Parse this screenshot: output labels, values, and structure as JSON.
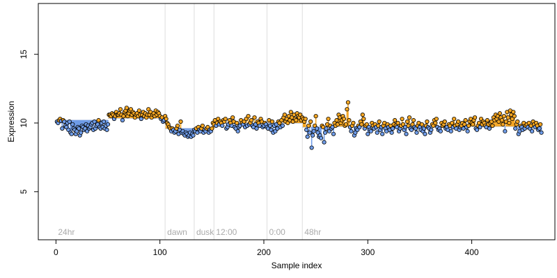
{
  "chart_data": {
    "type": "scatter",
    "xlabel": "Sample index",
    "ylabel": "Expression",
    "xlim": [
      -17,
      480
    ],
    "ylim": [
      1.5,
      18.7
    ],
    "x_ticks": [
      0,
      100,
      200,
      300,
      400
    ],
    "y_ticks": [
      5,
      10,
      15
    ],
    "baseline": 9.75,
    "grid": false,
    "legend": "none",
    "colors": {
      "above": "#f5a623",
      "below": "#6f9ce8",
      "point_edge": "#000000",
      "region_line": "#dddddd",
      "region_label": "#aaaaaa"
    },
    "regions": [
      {
        "x": 0,
        "label": "24hr"
      },
      {
        "x": 105,
        "label": "dawn"
      },
      {
        "x": 133,
        "label": "dusk"
      },
      {
        "x": 152,
        "label": "12:00"
      },
      {
        "x": 203,
        "label": "0:00"
      },
      {
        "x": 237,
        "label": "48hr"
      }
    ],
    "segments": [
      {
        "x0": 0,
        "x1": 50,
        "y": 10.2
      },
      {
        "x0": 50,
        "x1": 105,
        "y": 10.35
      },
      {
        "x0": 105,
        "x1": 152,
        "y": 9.6
      },
      {
        "x0": 152,
        "x1": 237,
        "y": 10.0
      },
      {
        "x0": 237,
        "x1": 263,
        "y": 9.7
      },
      {
        "x0": 263,
        "x1": 462,
        "y": 9.75
      }
    ],
    "points_y": [
      10.1,
      10.0,
      10.2,
      10.3,
      10.15,
      9.6,
      10.2,
      10.1,
      9.8,
      9.7,
      10.0,
      9.5,
      10.1,
      9.3,
      9.2,
      9.9,
      9.6,
      9.5,
      9.2,
      9.4,
      9.7,
      9.6,
      9.1,
      9.3,
      9.8,
      9.7,
      9.5,
      9.6,
      9.9,
      9.4,
      9.8,
      9.6,
      9.7,
      9.9,
      10.0,
      9.5,
      10.1,
      9.6,
      9.8,
      9.9,
      10.2,
      9.7,
      9.6,
      10.0,
      9.7,
      10.1,
      9.6,
      9.8,
      9.5,
      9.9,
      10.6,
      10.6,
      10.5,
      10.7,
      10.6,
      10.3,
      10.5,
      10.8,
      10.6,
      10.6,
      10.7,
      11.0,
      10.6,
      10.2,
      10.5,
      10.8,
      10.9,
      11.1,
      10.5,
      10.7,
      10.9,
      11.0,
      10.6,
      10.8,
      10.7,
      10.4,
      10.6,
      10.7,
      10.5,
      10.9,
      10.6,
      10.3,
      10.6,
      10.8,
      10.5,
      10.7,
      10.4,
      10.6,
      11.0,
      10.6,
      10.8,
      10.4,
      10.6,
      10.7,
      10.5,
      10.9,
      10.6,
      10.8,
      10.7,
      10.5,
      10.3,
      10.4,
      10.1,
      10.2,
      10.5,
      10.3,
      10.0,
      9.9,
      9.7,
      9.6,
      9.4,
      9.6,
      9.5,
      9.3,
      9.4,
      9.6,
      9.8,
      9.2,
      9.5,
      10.1,
      9.3,
      9.4,
      9.2,
      9.1,
      9.3,
      9.2,
      9.0,
      9.1,
      9.3,
      9.0,
      9.2,
      9.1,
      9.5,
      9.4,
      9.6,
      9.3,
      9.7,
      9.5,
      9.4,
      9.6,
      9.8,
      9.3,
      9.5,
      9.4,
      9.6,
      9.7,
      9.3,
      9.5,
      9.4,
      9.6,
      10.0,
      9.9,
      10.2,
      9.8,
      10.0,
      10.3,
      9.9,
      10.1,
      10.0,
      9.8,
      10.2,
      10.1,
      10.3,
      9.6,
      9.7,
      9.9,
      10.2,
      10.0,
      9.8,
      10.4,
      10.1,
      9.7,
      9.6,
      10.0,
      9.4,
      9.7,
      9.8,
      10.2,
      10.0,
      9.9,
      10.1,
      9.7,
      10.3,
      9.8,
      10.5,
      9.9,
      10.0,
      10.2,
      9.8,
      9.7,
      10.4,
      9.9,
      9.6,
      10.1,
      10.0,
      9.8,
      10.3,
      10.1,
      9.7,
      9.8,
      10.0,
      9.9,
      9.7,
      9.6,
      10.2,
      9.8,
      9.5,
      10.1,
      9.3,
      9.8,
      9.4,
      9.9,
      9.6,
      10.1,
      10.0,
      9.7,
      10.2,
      9.8,
      10.4,
      10.6,
      10.1,
      10.3,
      10.0,
      10.5,
      10.2,
      10.8,
      10.4,
      10.1,
      10.6,
      10.3,
      10.2,
      10.7,
      10.5,
      10.4,
      10.6,
      10.2,
      10.4,
      10.3,
      10.1,
      10.3,
      9.5,
      9.0,
      9.8,
      9.3,
      10.1,
      8.2,
      9.1,
      9.4,
      9.8,
      10.5,
      9.6,
      9.3,
      9.0,
      9.1,
      8.9,
      9.8,
      9.7,
      8.6,
      9.3,
      9.6,
      9.9,
      10.3,
      9.4,
      9.8,
      9.6,
      9.7,
      9.2,
      10.0,
      9.8,
      10.2,
      9.9,
      10.6,
      10.4,
      10.0,
      10.2,
      10.5,
      10.3,
      9.8,
      9.9,
      11.0,
      11.5,
      10.2,
      9.7,
      9.4,
      9.8,
      10.0,
      9.1,
      9.3,
      9.6,
      9.5,
      9.8,
      9.7,
      10.1,
      9.9,
      10.6,
      10.3,
      9.6,
      9.8,
      9.9,
      9.2,
      9.7,
      9.5,
      9.4,
      10.0,
      9.8,
      9.6,
      9.9,
      9.7,
      9.3,
      9.8,
      10.1,
      9.5,
      9.7,
      9.2,
      9.8,
      10.0,
      9.6,
      9.4,
      9.9,
      9.7,
      9.5,
      9.8,
      9.3,
      9.6,
      9.9,
      10.2,
      9.8,
      9.7,
      10.0,
      9.4,
      9.6,
      9.8,
      10.3,
      9.9,
      9.5,
      9.7,
      9.2,
      10.1,
      9.8,
      10.4,
      9.6,
      9.5,
      9.9,
      10.2,
      9.7,
      9.6,
      9.3,
      9.8,
      10.0,
      9.7,
      9.5,
      9.9,
      9.4,
      9.6,
      9.2,
      9.8,
      10.1,
      9.7,
      9.6,
      9.3,
      9.5,
      9.9,
      9.8,
      10.2,
      10.0,
      10.3,
      9.7,
      9.5,
      9.6,
      9.4,
      10.0,
      9.8,
      9.9,
      10.1,
      9.6,
      9.7,
      9.5,
      9.9,
      9.8,
      9.4,
      10.0,
      9.7,
      10.3,
      9.8,
      9.6,
      9.9,
      10.1,
      9.5,
      9.7,
      9.8,
      10.0,
      9.6,
      9.9,
      10.2,
      9.7,
      9.4,
      9.8,
      10.1,
      10.3,
      10.0,
      9.9,
      10.2,
      10.4,
      9.6,
      9.5,
      9.8,
      10.0,
      9.7,
      10.3,
      9.9,
      10.1,
      10.0,
      9.8,
      9.7,
      10.2,
      9.9,
      9.6,
      10.0,
      10.1,
      9.8,
      10.4,
      10.2,
      10.6,
      10.3,
      10.5,
      10.1,
      10.7,
      10.4,
      10.2,
      9.9,
      10.5,
      9.4,
      10.1,
      10.8,
      10.4,
      10.0,
      10.9,
      10.6,
      10.3,
      10.8,
      10.5,
      9.6,
      9.9,
      10.1,
      9.2,
      9.4,
      9.8,
      9.7,
      9.5,
      10.0,
      9.6,
      9.8,
      9.9,
      9.7,
      10.0,
      9.6,
      9.8,
      9.4,
      10.1,
      9.9,
      9.7,
      10.0,
      9.8,
      9.5,
      9.6,
      9.9,
      9.3
    ]
  }
}
